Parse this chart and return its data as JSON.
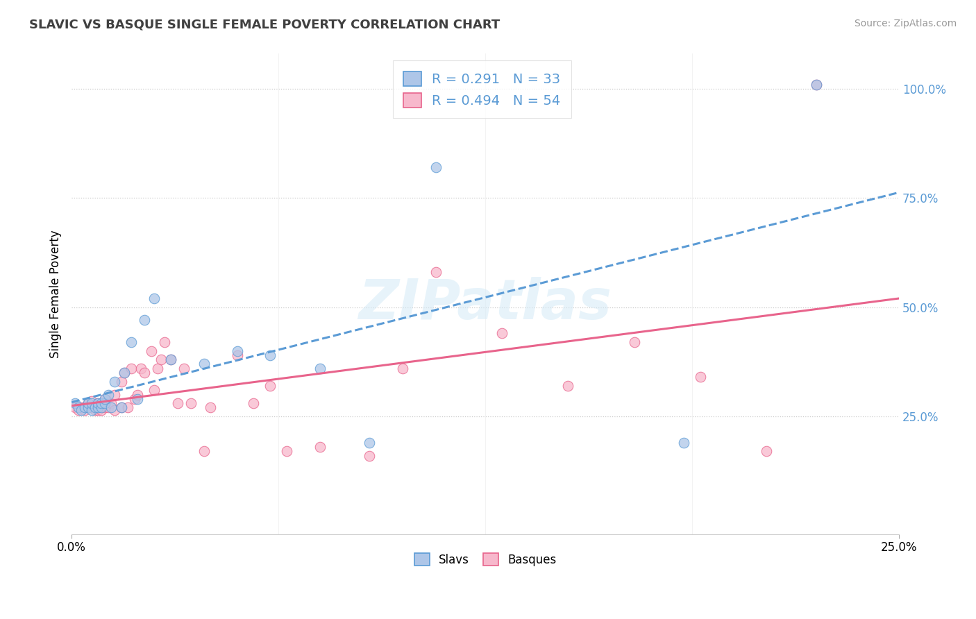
{
  "title": "SLAVIC VS BASQUE SINGLE FEMALE POVERTY CORRELATION CHART",
  "source": "Source: ZipAtlas.com",
  "ylabel": "Single Female Poverty",
  "xlim": [
    0.0,
    0.25
  ],
  "ylim": [
    -0.02,
    1.08
  ],
  "slavs_R": 0.291,
  "slavs_N": 33,
  "basques_R": 0.494,
  "basques_N": 54,
  "slav_fill_color": "#aec6e8",
  "basque_fill_color": "#f7b8cc",
  "slav_edge_color": "#5b9bd5",
  "basque_edge_color": "#e8648c",
  "slav_line_color": "#5b9bd5",
  "basque_line_color": "#e8648c",
  "tick_label_color": "#5b9bd5",
  "watermark": "ZIPatlas",
  "slavs_x": [
    0.001,
    0.002,
    0.003,
    0.004,
    0.005,
    0.005,
    0.006,
    0.006,
    0.007,
    0.008,
    0.008,
    0.009,
    0.009,
    0.01,
    0.01,
    0.011,
    0.012,
    0.013,
    0.015,
    0.016,
    0.018,
    0.02,
    0.022,
    0.025,
    0.03,
    0.04,
    0.05,
    0.06,
    0.075,
    0.09,
    0.11,
    0.185,
    0.225
  ],
  "slavs_y": [
    0.28,
    0.27,
    0.265,
    0.27,
    0.27,
    0.28,
    0.265,
    0.28,
    0.27,
    0.27,
    0.28,
    0.27,
    0.28,
    0.28,
    0.29,
    0.3,
    0.27,
    0.33,
    0.27,
    0.35,
    0.42,
    0.29,
    0.47,
    0.52,
    0.38,
    0.37,
    0.4,
    0.39,
    0.36,
    0.19,
    0.82,
    0.19,
    1.01
  ],
  "basques_x": [
    0.001,
    0.002,
    0.003,
    0.004,
    0.005,
    0.005,
    0.006,
    0.006,
    0.007,
    0.007,
    0.008,
    0.008,
    0.009,
    0.009,
    0.01,
    0.01,
    0.011,
    0.012,
    0.013,
    0.013,
    0.015,
    0.015,
    0.016,
    0.017,
    0.018,
    0.019,
    0.02,
    0.021,
    0.022,
    0.024,
    0.025,
    0.026,
    0.027,
    0.028,
    0.03,
    0.032,
    0.034,
    0.036,
    0.04,
    0.042,
    0.05,
    0.055,
    0.06,
    0.065,
    0.075,
    0.09,
    0.1,
    0.11,
    0.13,
    0.15,
    0.17,
    0.19,
    0.21,
    0.225
  ],
  "basques_y": [
    0.27,
    0.265,
    0.27,
    0.265,
    0.27,
    0.28,
    0.27,
    0.285,
    0.265,
    0.275,
    0.265,
    0.28,
    0.265,
    0.28,
    0.27,
    0.29,
    0.27,
    0.28,
    0.265,
    0.3,
    0.27,
    0.33,
    0.35,
    0.27,
    0.36,
    0.29,
    0.3,
    0.36,
    0.35,
    0.4,
    0.31,
    0.36,
    0.38,
    0.42,
    0.38,
    0.28,
    0.36,
    0.28,
    0.17,
    0.27,
    0.39,
    0.28,
    0.32,
    0.17,
    0.18,
    0.16,
    0.36,
    0.58,
    0.44,
    0.32,
    0.42,
    0.34,
    0.17,
    1.01
  ],
  "ytick_positions": [
    0.25,
    0.5,
    0.75,
    1.0
  ],
  "ytick_labels": [
    "25.0%",
    "50.0%",
    "75.0%",
    "100.0%"
  ],
  "xtick_positions": [
    0.0,
    0.25
  ],
  "xtick_labels": [
    "0.0%",
    "25.0%"
  ]
}
